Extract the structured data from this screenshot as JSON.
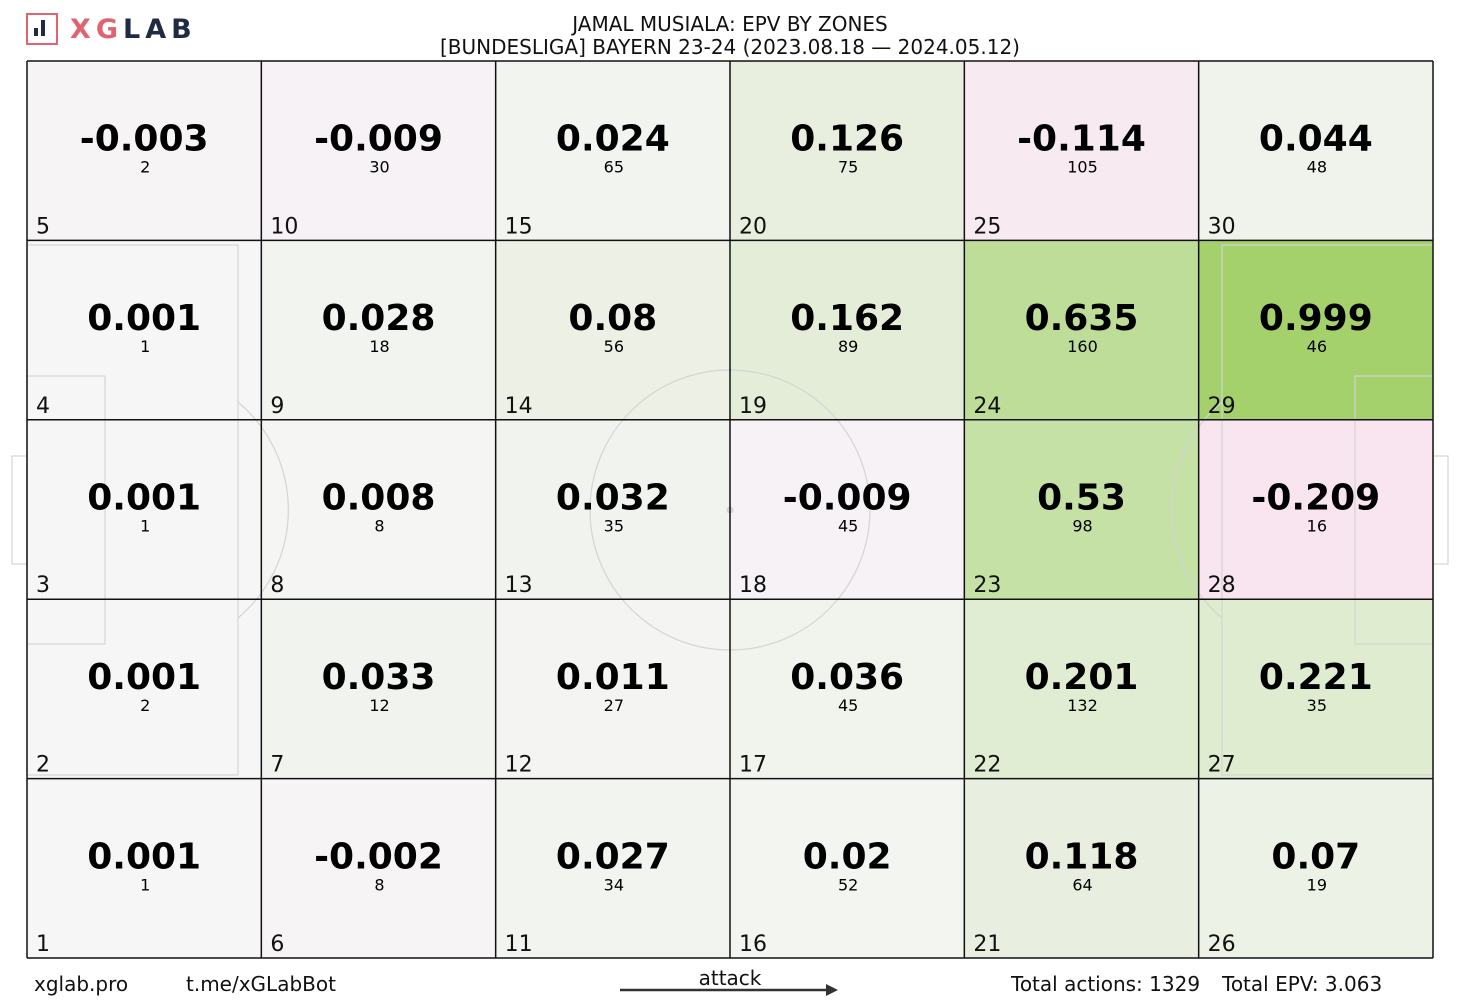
{
  "brand": {
    "logo_text_xg": "XG",
    "logo_text_lab": "LAB"
  },
  "header": {
    "title": "JAMAL MUSIALA: EPV BY ZONES",
    "subtitle": "[BUNDESLIGA] BAYERN 23-24 (2023.08.18 — 2024.05.12)"
  },
  "footer": {
    "site": "xglab.pro",
    "bot": "t.me/xGLabBot",
    "direction": "attack",
    "total_actions": "Total actions: 1329",
    "total_epv": "Total EPV: 3.063"
  },
  "colors": {
    "positive": "#9ccd5f",
    "negative": "#f7e3ee",
    "neutral": "#f5f5f5",
    "grid": "#111111"
  },
  "chart_data": {
    "type": "heatmap",
    "title": "JAMAL MUSIALA: EPV BY ZONES",
    "columns": 6,
    "rows": 5,
    "zones": [
      {
        "id": 1,
        "epv": 0.001,
        "actions": 1
      },
      {
        "id": 2,
        "epv": 0.001,
        "actions": 2
      },
      {
        "id": 3,
        "epv": 0.001,
        "actions": 1
      },
      {
        "id": 4,
        "epv": 0.001,
        "actions": 1
      },
      {
        "id": 5,
        "epv": -0.003,
        "actions": 2
      },
      {
        "id": 6,
        "epv": -0.002,
        "actions": 8
      },
      {
        "id": 7,
        "epv": 0.033,
        "actions": 12
      },
      {
        "id": 8,
        "epv": 0.008,
        "actions": 8
      },
      {
        "id": 9,
        "epv": 0.028,
        "actions": 18
      },
      {
        "id": 10,
        "epv": -0.009,
        "actions": 30
      },
      {
        "id": 11,
        "epv": 0.027,
        "actions": 34
      },
      {
        "id": 12,
        "epv": 0.011,
        "actions": 27
      },
      {
        "id": 13,
        "epv": 0.032,
        "actions": 35
      },
      {
        "id": 14,
        "epv": 0.08,
        "actions": 56
      },
      {
        "id": 15,
        "epv": 0.024,
        "actions": 65
      },
      {
        "id": 16,
        "epv": 0.02,
        "actions": 52
      },
      {
        "id": 17,
        "epv": 0.036,
        "actions": 45
      },
      {
        "id": 18,
        "epv": -0.009,
        "actions": 45
      },
      {
        "id": 19,
        "epv": 0.162,
        "actions": 89
      },
      {
        "id": 20,
        "epv": 0.126,
        "actions": 75
      },
      {
        "id": 21,
        "epv": 0.118,
        "actions": 64
      },
      {
        "id": 22,
        "epv": 0.201,
        "actions": 132
      },
      {
        "id": 23,
        "epv": 0.53,
        "actions": 98
      },
      {
        "id": 24,
        "epv": 0.635,
        "actions": 160
      },
      {
        "id": 25,
        "epv": -0.114,
        "actions": 105
      },
      {
        "id": 26,
        "epv": 0.07,
        "actions": 19
      },
      {
        "id": 27,
        "epv": 0.221,
        "actions": 35
      },
      {
        "id": 28,
        "epv": -0.209,
        "actions": 16
      },
      {
        "id": 29,
        "epv": 0.999,
        "actions": 46
      },
      {
        "id": 30,
        "epv": 0.044,
        "actions": 48
      }
    ]
  }
}
